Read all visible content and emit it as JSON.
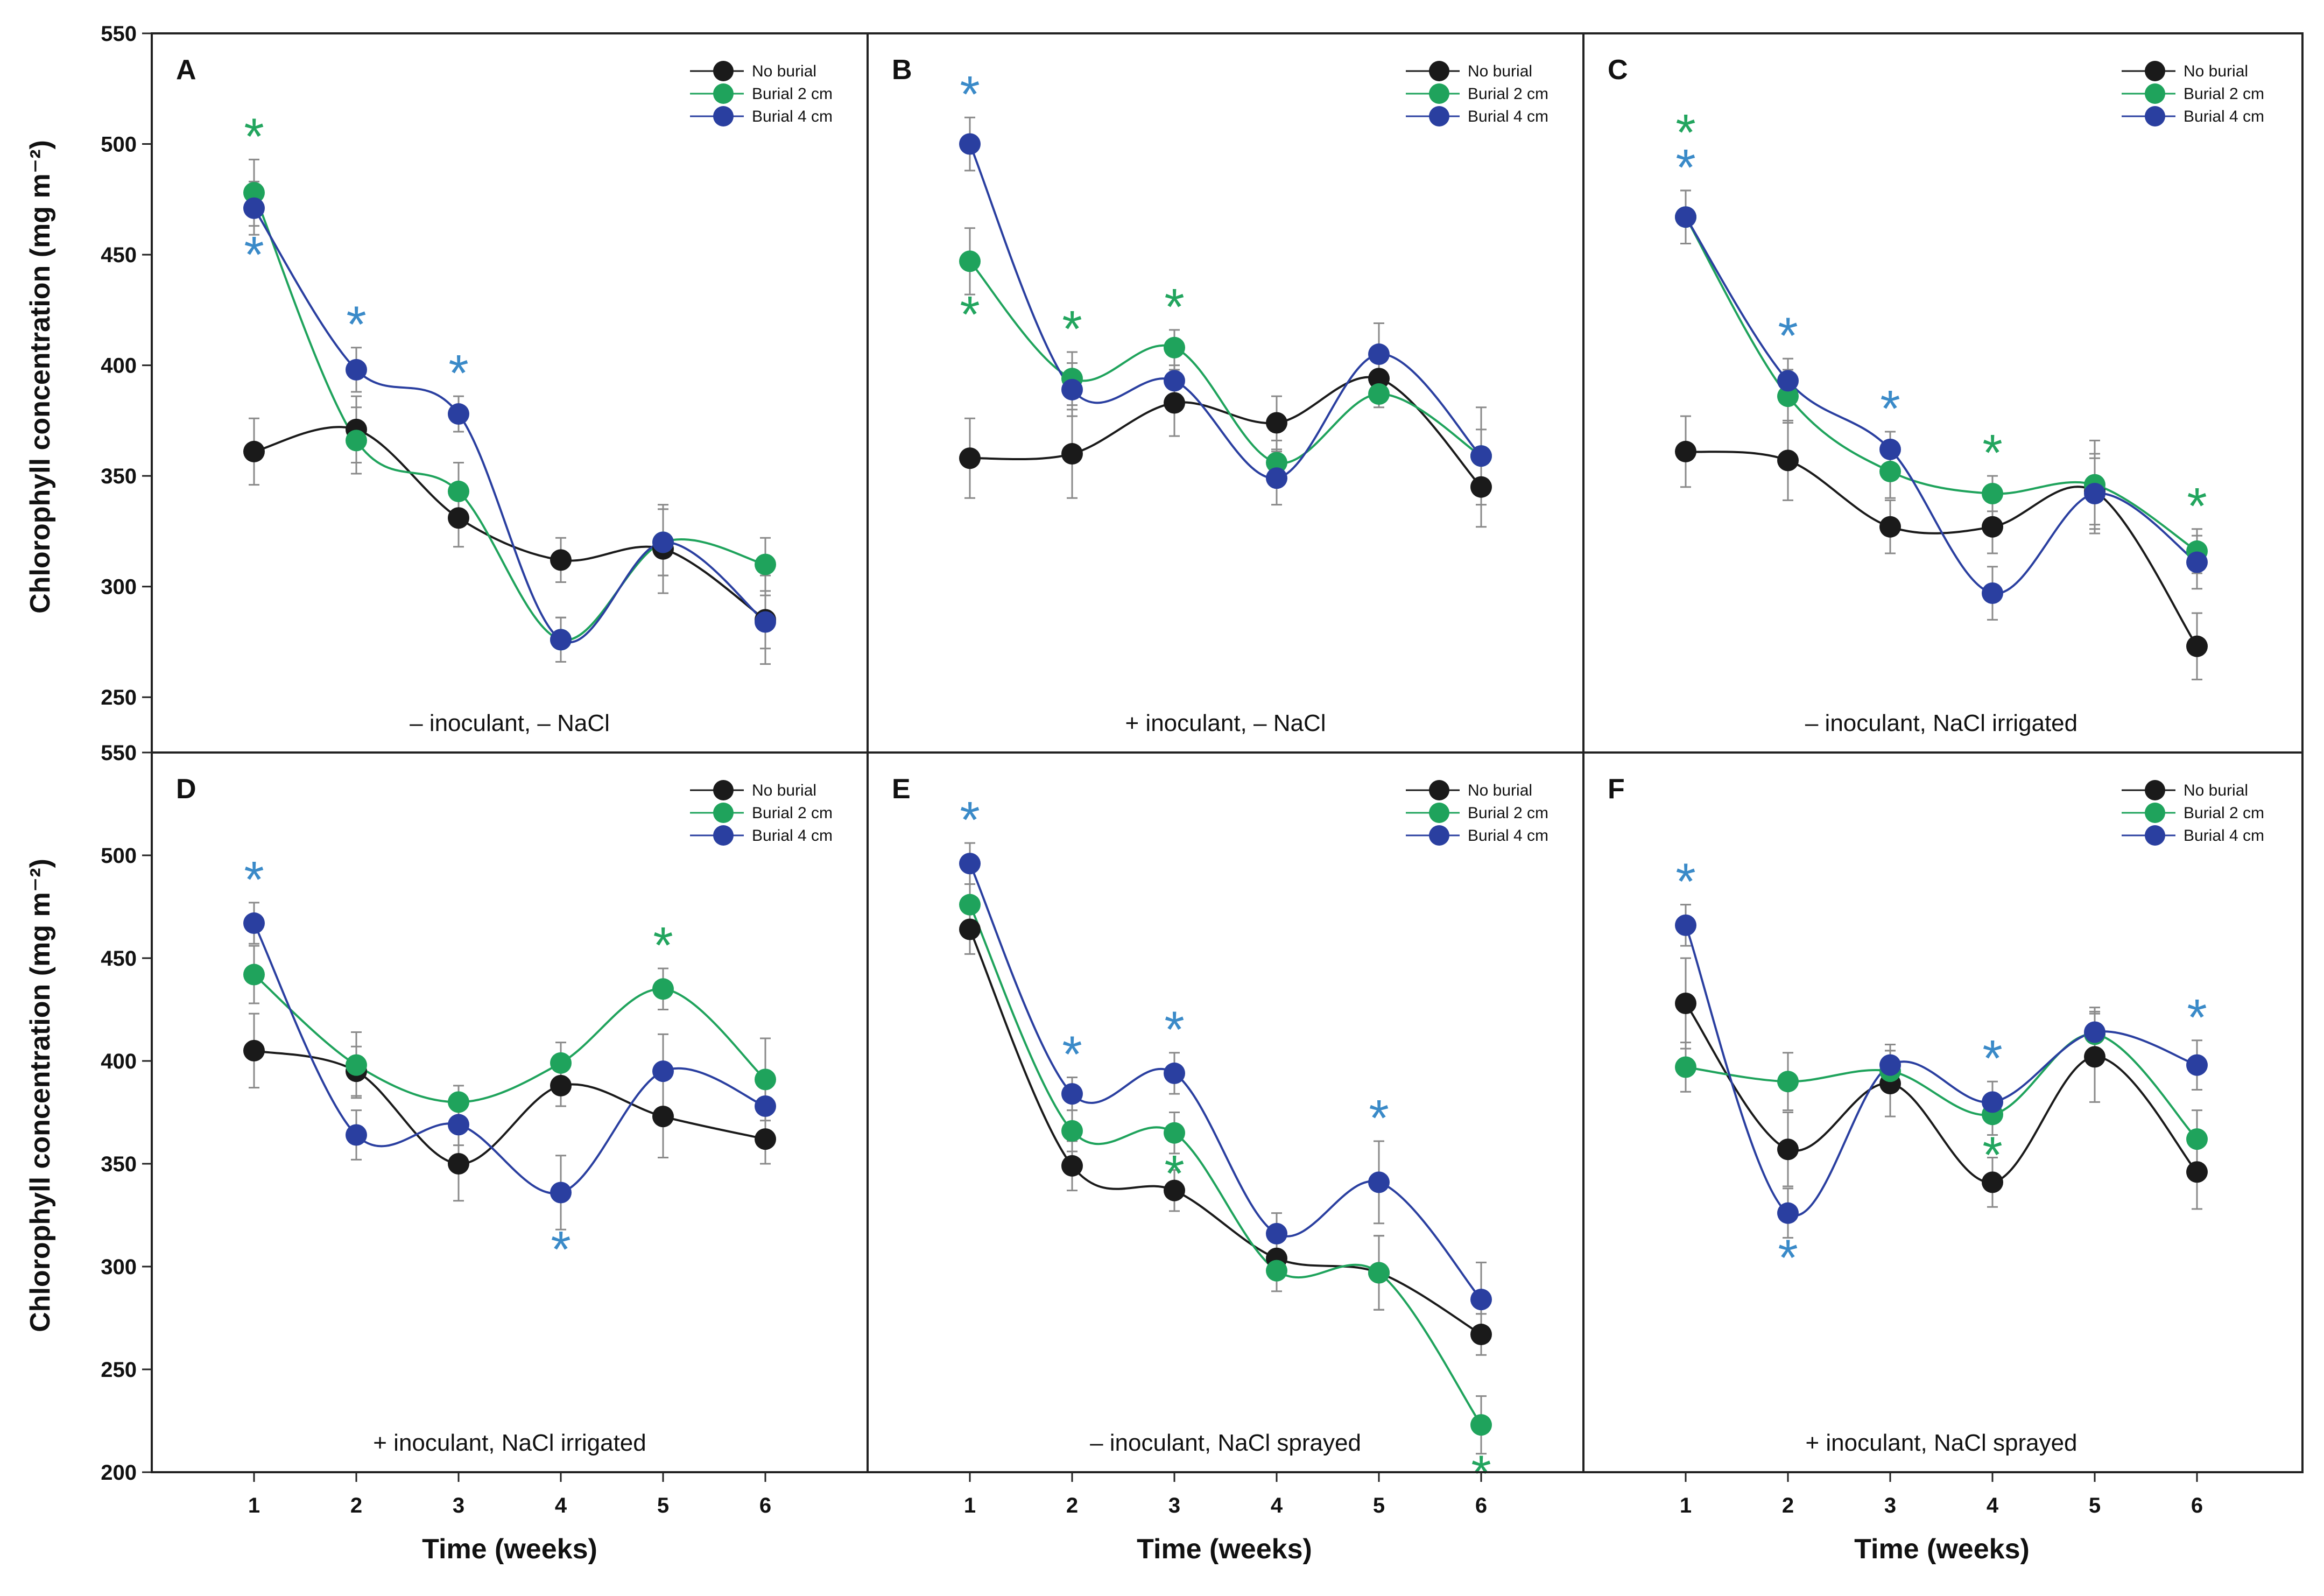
{
  "figure": {
    "ylabel": "Chlorophyll concentration  (mg m⁻²)",
    "xlabel": "Time (weeks)",
    "x_ticks": [
      "1",
      "2",
      "3",
      "4",
      "5",
      "6"
    ],
    "y_ticks_top_row": [
      "550",
      "500",
      "450",
      "400",
      "350",
      "300",
      "250"
    ],
    "y_ticks_bottom_row": [
      "550",
      "500",
      "450",
      "400",
      "350",
      "300",
      "250",
      "200"
    ],
    "colors": {
      "No burial": "#1a1a1a",
      "Burial 2 cm": "#1fa35c",
      "Burial 4 cm": "#2a3fa0",
      "star_green": "#22a55e",
      "star_blue": "#3a8ac8"
    },
    "legend": [
      "No burial",
      "Burial 2 cm",
      "Burial 4 cm"
    ]
  },
  "chart_data": [
    {
      "type": "line",
      "panel": "A",
      "condition": "– inoculant, – NaCl",
      "xlabel": "Time (weeks)",
      "ylabel": "Chlorophyll concentration  (mg m⁻²)",
      "x": [
        1,
        2,
        3,
        4,
        5,
        6
      ],
      "ylim": [
        225,
        550
      ],
      "series": [
        {
          "name": "No burial",
          "values": [
            361,
            371,
            331,
            312,
            317,
            285
          ],
          "errors": [
            15,
            15,
            13,
            10,
            20,
            20
          ],
          "significant": [
            false,
            false,
            false,
            false,
            false,
            false
          ]
        },
        {
          "name": "Burial 2 cm",
          "values": [
            478,
            366,
            343,
            276,
            320,
            310
          ],
          "errors": [
            15,
            15,
            13,
            10,
            15,
            12
          ],
          "significant": [
            true,
            false,
            false,
            false,
            false,
            false
          ]
        },
        {
          "name": "Burial 4 cm",
          "values": [
            471,
            398,
            378,
            276,
            320,
            284
          ],
          "errors": [
            12,
            10,
            8,
            10,
            15,
            12
          ],
          "significant": [
            true,
            true,
            true,
            false,
            false,
            false
          ]
        }
      ]
    },
    {
      "type": "line",
      "panel": "B",
      "condition": "+ inoculant, – NaCl",
      "xlabel": "Time (weeks)",
      "ylabel": "Chlorophyll concentration  (mg m⁻²)",
      "x": [
        1,
        2,
        3,
        4,
        5,
        6
      ],
      "ylim": [
        225,
        550
      ],
      "series": [
        {
          "name": "No burial",
          "values": [
            358,
            360,
            383,
            374,
            394,
            345
          ],
          "errors": [
            18,
            20,
            15,
            12,
            10,
            18
          ],
          "significant": [
            false,
            false,
            false,
            false,
            false,
            false
          ]
        },
        {
          "name": "Burial 2 cm",
          "values": [
            447,
            394,
            408,
            356,
            387,
            359
          ],
          "errors": [
            15,
            12,
            8,
            10,
            6,
            12
          ],
          "significant": [
            true,
            true,
            true,
            false,
            false,
            false
          ]
        },
        {
          "name": "Burial 4 cm",
          "values": [
            500,
            389,
            393,
            349,
            405,
            359
          ],
          "errors": [
            12,
            12,
            12,
            12,
            14,
            22
          ],
          "significant": [
            true,
            false,
            false,
            false,
            false,
            false
          ]
        }
      ]
    },
    {
      "type": "line",
      "panel": "C",
      "condition": "– inoculant, NaCl irrigated",
      "xlabel": "Time (weeks)",
      "ylabel": "Chlorophyll concentration  (mg m⁻²)",
      "x": [
        1,
        2,
        3,
        4,
        5,
        6
      ],
      "ylim": [
        225,
        550
      ],
      "series": [
        {
          "name": "No burial",
          "values": [
            361,
            357,
            327,
            327,
            343,
            273
          ],
          "errors": [
            16,
            18,
            12,
            12,
            15,
            15
          ],
          "significant": [
            false,
            false,
            false,
            false,
            false,
            false
          ]
        },
        {
          "name": "Burial 2 cm",
          "values": [
            467,
            386,
            352,
            342,
            346,
            316
          ],
          "errors": [
            12,
            12,
            12,
            8,
            20,
            10
          ],
          "significant": [
            true,
            false,
            false,
            true,
            false,
            true
          ]
        },
        {
          "name": "Burial 4 cm",
          "values": [
            467,
            393,
            362,
            297,
            342,
            311
          ],
          "errors": [
            12,
            10,
            8,
            12,
            18,
            12
          ],
          "significant": [
            true,
            true,
            true,
            false,
            false,
            false
          ]
        }
      ]
    },
    {
      "type": "line",
      "panel": "D",
      "condition": "+ inoculant, NaCl irrigated",
      "xlabel": "Time (weeks)",
      "ylabel": "Chlorophyll concentration  (mg m⁻²)",
      "x": [
        1,
        2,
        3,
        4,
        5,
        6
      ],
      "ylim": [
        200,
        550
      ],
      "series": [
        {
          "name": "No burial",
          "values": [
            405,
            395,
            350,
            388,
            373,
            362
          ],
          "errors": [
            18,
            12,
            18,
            10,
            20,
            12
          ],
          "significant": [
            false,
            false,
            false,
            false,
            false,
            false
          ]
        },
        {
          "name": "Burial 2 cm",
          "values": [
            442,
            398,
            380,
            399,
            435,
            391
          ],
          "errors": [
            14,
            16,
            8,
            10,
            10,
            20
          ],
          "significant": [
            false,
            false,
            false,
            false,
            true,
            false
          ]
        },
        {
          "name": "Burial 4 cm",
          "values": [
            467,
            364,
            369,
            336,
            395,
            378
          ],
          "errors": [
            10,
            12,
            10,
            18,
            18,
            12
          ],
          "significant": [
            true,
            false,
            false,
            true,
            false,
            false
          ]
        }
      ]
    },
    {
      "type": "line",
      "panel": "E",
      "condition": "– inoculant, NaCl sprayed",
      "xlabel": "Time (weeks)",
      "ylabel": "Chlorophyll concentration  (mg m⁻²)",
      "x": [
        1,
        2,
        3,
        4,
        5,
        6
      ],
      "ylim": [
        200,
        550
      ],
      "series": [
        {
          "name": "No burial",
          "values": [
            464,
            349,
            337,
            304,
            297,
            267
          ],
          "errors": [
            12,
            12,
            10,
            10,
            18,
            10
          ],
          "significant": [
            false,
            false,
            false,
            false,
            false,
            false
          ]
        },
        {
          "name": "Burial 2 cm",
          "values": [
            476,
            366,
            365,
            298,
            297,
            223
          ],
          "errors": [
            10,
            10,
            10,
            10,
            18,
            14
          ],
          "significant": [
            false,
            false,
            true,
            false,
            false,
            true
          ]
        },
        {
          "name": "Burial 4 cm",
          "values": [
            496,
            384,
            394,
            316,
            341,
            284
          ],
          "errors": [
            10,
            8,
            10,
            10,
            20,
            18
          ],
          "significant": [
            true,
            true,
            true,
            false,
            true,
            false
          ]
        }
      ]
    },
    {
      "type": "line",
      "panel": "F",
      "condition": "+ inoculant, NaCl sprayed",
      "xlabel": "Time (weeks)",
      "ylabel": "Chlorophyll concentration  (mg m⁻²)",
      "x": [
        1,
        2,
        3,
        4,
        5,
        6
      ],
      "ylim": [
        200,
        550
      ],
      "series": [
        {
          "name": "No burial",
          "values": [
            428,
            357,
            389,
            341,
            402,
            346
          ],
          "errors": [
            22,
            18,
            16,
            12,
            22,
            18
          ],
          "significant": [
            false,
            false,
            false,
            false,
            false,
            false
          ]
        },
        {
          "name": "Burial 2 cm",
          "values": [
            397,
            390,
            395,
            374,
            413,
            362
          ],
          "errors": [
            12,
            14,
            10,
            10,
            10,
            14
          ],
          "significant": [
            false,
            false,
            false,
            true,
            false,
            false
          ]
        },
        {
          "name": "Burial 4 cm",
          "values": [
            466,
            326,
            398,
            380,
            414,
            398
          ],
          "errors": [
            10,
            12,
            10,
            10,
            12,
            12
          ],
          "significant": [
            true,
            true,
            false,
            true,
            false,
            true
          ]
        }
      ]
    }
  ]
}
